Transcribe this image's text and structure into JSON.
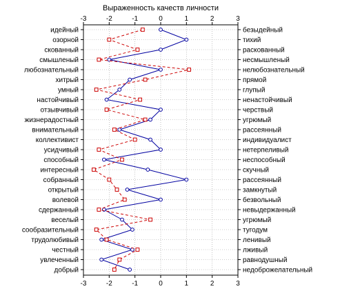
{
  "chart_data": {
    "type": "line",
    "title": "Выраженность качеств личности",
    "orientation": "horizontal-values",
    "xlim": [
      -3,
      3
    ],
    "x_ticks": [
      -3,
      -2,
      -1,
      0,
      1,
      2,
      3
    ],
    "grid": true,
    "left_labels": [
      "идейный",
      "озорной",
      "скованный",
      "смышленый",
      "любознательный",
      "хитрый",
      "умный",
      "настойчивый",
      "отзывчивый",
      "жизнерадостный",
      "внимательный",
      "коллективист",
      "усидчивый",
      "способный",
      "интересный",
      "собранный",
      "открытый",
      "волевой",
      "сдержанный",
      "веселый",
      "сообразительный",
      "трудолюбивый",
      "честный",
      "увлеченный",
      "добрый"
    ],
    "right_labels": [
      "безыдейный",
      "тихий",
      "раскованный",
      "несмышленый",
      "нелюбознательный",
      "прямой",
      "глупый",
      "ненастойчивый",
      "черствый",
      "угрюмый",
      "рассеянный",
      "индивидуалист",
      "нетерпеливый",
      "неспособный",
      "скучный",
      "рассеянный",
      "замкнутый",
      "безвольный",
      "невыдержанный",
      "угрюмый",
      "тугодум",
      "ленивый",
      "лживый",
      "равнодушный",
      "недоброжелательный"
    ],
    "series": [
      {
        "style": "solid",
        "color": "#0000a0",
        "marker": "circle",
        "values": [
          0.0,
          1.0,
          0.0,
          -2.0,
          0.0,
          -1.2,
          -1.6,
          -2.1,
          0.0,
          -0.4,
          -1.6,
          -0.4,
          0.0,
          -2.2,
          -0.5,
          1.0,
          -1.3,
          0.0,
          -2.2,
          -1.5,
          -1.1,
          -2.3,
          -1.1,
          -2.3,
          -1.2
        ]
      },
      {
        "style": "dashed",
        "color": "#cc0000",
        "marker": "square",
        "values": [
          -0.7,
          -2.0,
          -0.9,
          -2.4,
          1.1,
          -0.6,
          -2.5,
          -0.8,
          -2.1,
          -0.6,
          -1.8,
          -1.0,
          -2.4,
          -1.5,
          -2.6,
          -2.0,
          -1.7,
          -1.4,
          -2.4,
          -0.4,
          -2.5,
          -2.1,
          -0.9,
          -1.6,
          -1.8
        ]
      }
    ]
  }
}
